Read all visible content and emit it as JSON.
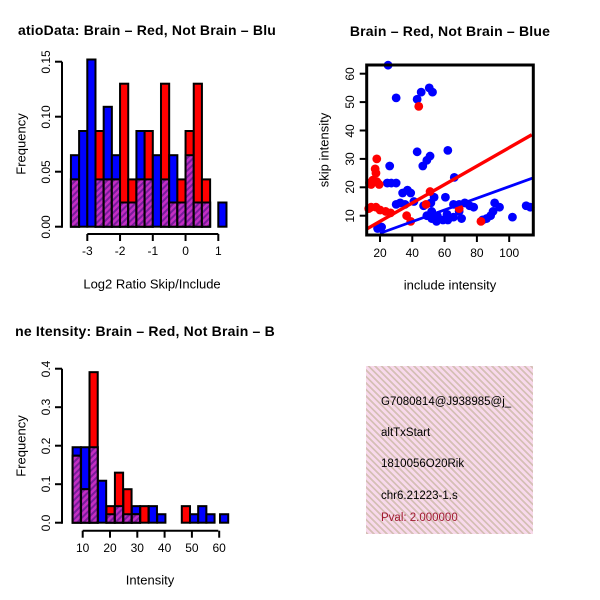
{
  "colors": {
    "red": "#FF0000",
    "blue": "#0000FF",
    "purple": "#C32EC3",
    "purple_dark": "#7A1B9B",
    "pink_bg": "#F8D9EB",
    "pval_red": "#A01B30",
    "black": "#000000"
  },
  "info_panel": {
    "lines": [
      "G7080814@J938985@j_",
      "altTxStart",
      "1810056O20Rik",
      "chr6.21223-1.s"
    ],
    "pval": "Pval: 2.000000"
  },
  "chart_data": [
    {
      "type": "bar",
      "panel": "log2-ratio-histogram",
      "title": "atioData: Brain – Red, Not Brain – Blu",
      "xlabel": "Log2 Ratio Skip/Include",
      "ylabel": "Frequency",
      "legend_note": "Brain = red, Not Brain = blue, overlap = purple hatched",
      "xlim": [
        -3.5,
        1.4
      ],
      "ylim": [
        0,
        0.15
      ],
      "bin_width": 0.25,
      "x_tick_values": [
        -3,
        -2,
        -1,
        0,
        1
      ],
      "x_tick_labels": [
        "-3",
        "-2",
        "-1",
        "0",
        "1"
      ],
      "y_tick_values": [
        0,
        0.05,
        0.1,
        0.15
      ],
      "y_tick_labels": [
        "0.00",
        "0.05",
        "0.10",
        "0.15"
      ],
      "bins_format": [
        "x_start",
        "blue_freq",
        "red_freq",
        "overlap_freq"
      ],
      "bins": [
        [
          -3.5,
          0.065,
          0.043,
          0.043
        ],
        [
          -3.25,
          0.087,
          0,
          0
        ],
        [
          -3.0,
          0.152,
          0,
          0
        ],
        [
          -2.75,
          0.043,
          0.087,
          0.043
        ],
        [
          -2.5,
          0.109,
          0.043,
          0.043
        ],
        [
          -2.25,
          0.065,
          0.043,
          0.043
        ],
        [
          -2.0,
          0.022,
          0.13,
          0.022
        ],
        [
          -1.75,
          0.022,
          0.043,
          0.022
        ],
        [
          -1.5,
          0.087,
          0.043,
          0.043
        ],
        [
          -1.25,
          0.043,
          0.087,
          0.043
        ],
        [
          -1.0,
          0.065,
          0,
          0
        ],
        [
          -0.75,
          0.043,
          0.13,
          0.043
        ],
        [
          -0.5,
          0.065,
          0.022,
          0.022
        ],
        [
          -0.25,
          0.022,
          0.043,
          0.022
        ],
        [
          0.0,
          0.065,
          0.087,
          0.065
        ],
        [
          0.25,
          0.022,
          0.13,
          0.022
        ],
        [
          0.5,
          0.022,
          0.043,
          0.022
        ],
        [
          1.0,
          0.022,
          0,
          0
        ]
      ]
    },
    {
      "type": "scatter",
      "panel": "intensity-scatter",
      "title": "Brain – Red, Not Brain – Blue",
      "xlabel": "include intensity",
      "ylabel": "skip intensity",
      "xlim": [
        11.7,
        115.6
      ],
      "ylim": [
        2.9,
        63
      ],
      "x_tick_values": [
        20,
        40,
        60,
        80,
        100
      ],
      "x_tick_labels": [
        "20",
        "40",
        "60",
        "80",
        "100"
      ],
      "y_tick_values": [
        10,
        20,
        30,
        40,
        50,
        60
      ],
      "y_tick_labels": [
        "10",
        "20",
        "30",
        "40",
        "50",
        "60"
      ],
      "points_blue": [
        [
          25,
          63
        ],
        [
          30,
          51.5
        ],
        [
          43,
          51
        ],
        [
          45.5,
          53.5
        ],
        [
          50.5,
          55
        ],
        [
          52.5,
          53.5
        ],
        [
          26,
          27.5
        ],
        [
          43,
          32.5
        ],
        [
          46.5,
          27.5
        ],
        [
          49,
          29.5
        ],
        [
          51,
          31
        ],
        [
          62,
          33
        ],
        [
          66,
          23.5
        ],
        [
          24.5,
          21.5
        ],
        [
          27,
          21.5
        ],
        [
          30,
          21.5
        ],
        [
          37,
          19
        ],
        [
          34,
          18
        ],
        [
          39,
          18
        ],
        [
          53.5,
          16.5
        ],
        [
          32.5,
          14.5
        ],
        [
          30,
          14
        ],
        [
          35.5,
          14
        ],
        [
          41,
          15
        ],
        [
          47,
          13.5
        ],
        [
          51.5,
          14.5
        ],
        [
          60.5,
          16.5
        ],
        [
          65.5,
          14
        ],
        [
          69,
          14
        ],
        [
          72.5,
          14.5
        ],
        [
          75.5,
          13.5
        ],
        [
          78,
          13
        ],
        [
          52,
          11.5
        ],
        [
          49,
          10
        ],
        [
          52,
          9
        ],
        [
          55.5,
          10
        ],
        [
          55,
          8
        ],
        [
          59,
          8.5
        ],
        [
          62,
          8.5
        ],
        [
          61.5,
          10.5
        ],
        [
          65.5,
          9.5
        ],
        [
          69,
          11.5
        ],
        [
          70.5,
          9
        ],
        [
          83.5,
          8.5
        ],
        [
          86,
          9
        ],
        [
          88.5,
          10
        ],
        [
          90,
          11.5
        ],
        [
          91,
          14.5
        ],
        [
          94,
          13
        ],
        [
          102,
          9.5
        ],
        [
          110.5,
          13.5
        ],
        [
          113,
          13
        ],
        [
          18.5,
          5.5
        ],
        [
          21,
          6
        ]
      ],
      "points_red": [
        [
          44,
          48.5
        ],
        [
          18,
          30
        ],
        [
          17,
          26.5
        ],
        [
          17.5,
          25
        ],
        [
          15.5,
          22.5
        ],
        [
          13.5,
          21.5
        ],
        [
          18,
          22
        ],
        [
          14.5,
          21
        ],
        [
          19.5,
          21
        ],
        [
          51,
          18.5
        ],
        [
          48.5,
          14
        ],
        [
          13,
          12.5
        ],
        [
          14.5,
          13
        ],
        [
          17.5,
          13
        ],
        [
          20,
          12
        ],
        [
          23.5,
          11.5
        ],
        [
          26.5,
          11
        ],
        [
          36.5,
          10
        ],
        [
          39,
          8
        ],
        [
          69,
          12.5
        ],
        [
          82.5,
          8
        ]
      ],
      "trend_line_red": {
        "x1": 11.7,
        "y1": 5.3,
        "x2": 114.0,
        "y2": 38.5
      },
      "trend_line_blue": {
        "x1": 20.0,
        "y1": 3.8,
        "x2": 114.3,
        "y2": 23.2
      }
    },
    {
      "type": "bar",
      "panel": "intensity-histogram",
      "title": "ne Itensity: Brain – Red, Not Brain – B",
      "xlabel": "Intensity",
      "ylabel": "Frequency",
      "legend_note": "Brain = red, Not Brain = blue, overlap = purple hatched",
      "xlim": [
        5,
        64
      ],
      "ylim": [
        0,
        0.4
      ],
      "bin_width": 3.0,
      "x_tick_values": [
        10,
        20,
        30,
        40,
        50,
        60
      ],
      "x_tick_labels": [
        "10",
        "20",
        "30",
        "40",
        "50",
        "60"
      ],
      "y_tick_values": [
        0,
        0.1,
        0.2,
        0.3,
        0.4
      ],
      "y_tick_labels": [
        "0.0",
        "0.1",
        "0.2",
        "0.3",
        "0.4"
      ],
      "bins_format": [
        "x_start",
        "blue_freq",
        "red_freq",
        "overlap_freq"
      ],
      "bins": [
        [
          6.3,
          0.196,
          0.174,
          0.174
        ],
        [
          9.4,
          0.196,
          0.087,
          0.087
        ],
        [
          12.5,
          0.196,
          0.391,
          0.196
        ],
        [
          15.6,
          0.109,
          0,
          0
        ],
        [
          18.7,
          0.022,
          0.043,
          0.022
        ],
        [
          21.8,
          0.043,
          0.13,
          0.043
        ],
        [
          24.9,
          0.022,
          0.087,
          0.022
        ],
        [
          28.0,
          0.043,
          0.022,
          0.022
        ],
        [
          31.1,
          0,
          0.043,
          0
        ],
        [
          34.2,
          0.043,
          0,
          0
        ],
        [
          37.3,
          0.022,
          0,
          0
        ],
        [
          46.3,
          0,
          0.043,
          0
        ],
        [
          49.3,
          0.022,
          0,
          0
        ],
        [
          52.3,
          0.043,
          0,
          0
        ],
        [
          55.3,
          0.022,
          0,
          0
        ],
        [
          60.3,
          0.022,
          0,
          0
        ]
      ]
    }
  ]
}
